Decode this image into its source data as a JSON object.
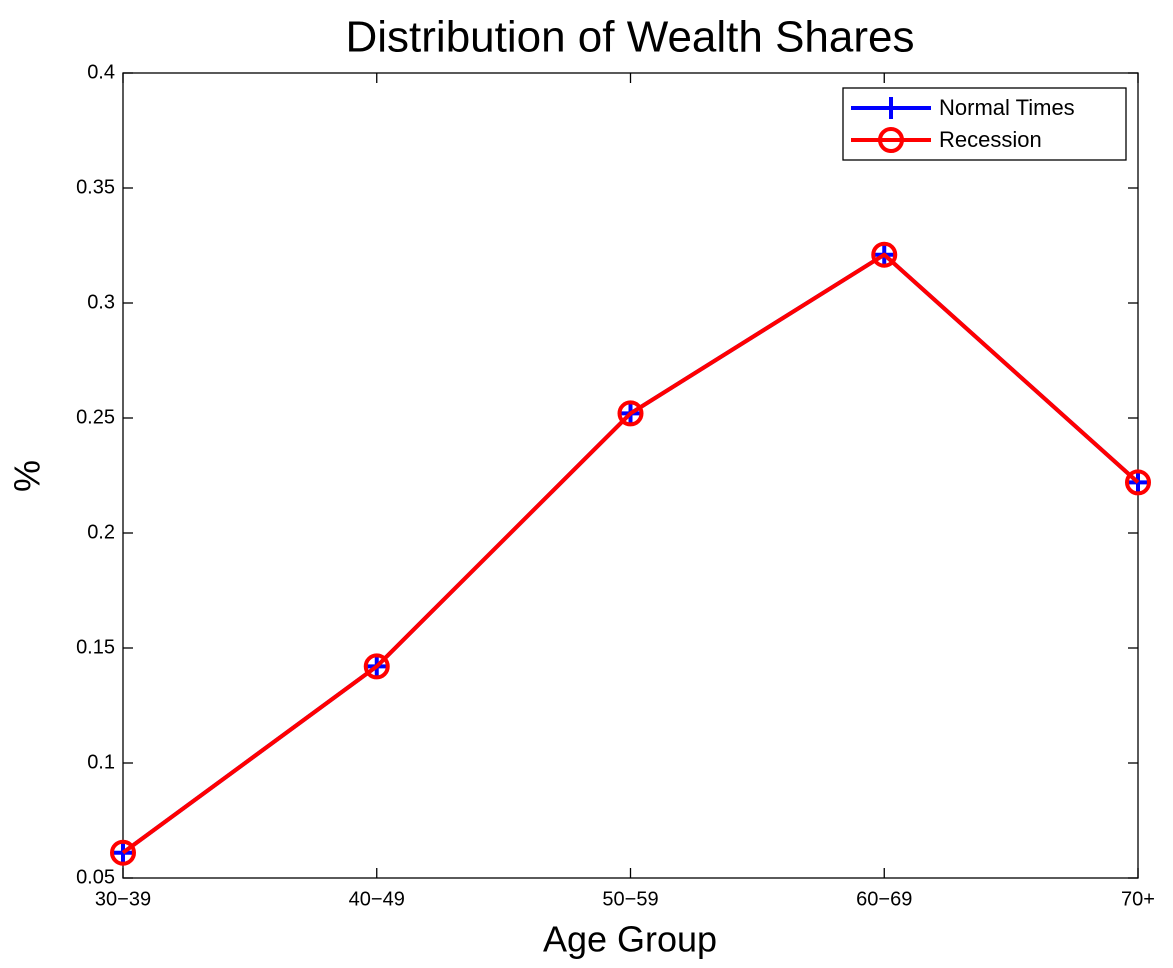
{
  "chart_data": {
    "type": "line",
    "title": "Distribution of Wealth Shares",
    "x_label": "Age Group",
    "y_label": "%",
    "categories": [
      "30−39",
      "40−49",
      "50−59",
      "60−69",
      "70+"
    ],
    "series": [
      {
        "name": "Normal Times",
        "color": "#0000ff",
        "marker": "plus",
        "values": [
          0.061,
          0.142,
          0.252,
          0.321,
          0.222
        ]
      },
      {
        "name": "Recession",
        "color": "#ff0000",
        "marker": "circle",
        "values": [
          0.061,
          0.142,
          0.252,
          0.321,
          0.222
        ]
      }
    ],
    "ylim": [
      0.05,
      0.4
    ],
    "yticks": [
      0.05,
      0.1,
      0.15,
      0.2,
      0.25,
      0.3,
      0.35,
      0.4
    ],
    "grid": false,
    "legend": "upper-right"
  }
}
